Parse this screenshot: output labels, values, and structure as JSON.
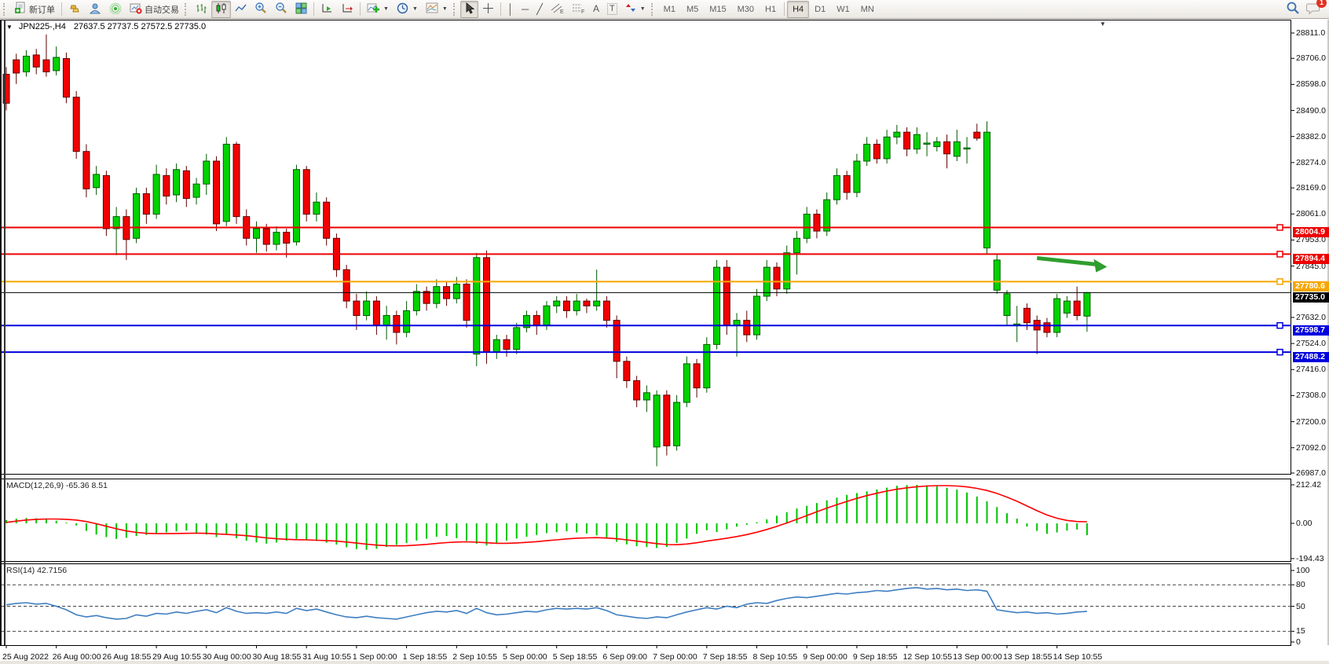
{
  "toolbar": {
    "new_order_label": "新订单",
    "autotrading_label": "自动交易",
    "letters": {
      "text_tool": "A",
      "label_tool": "T",
      "channel": "E",
      "fibo": "F"
    },
    "line_glyphs": {
      "vline": "│",
      "hline": "─",
      "trendline": "╱",
      "crosshair": "+"
    },
    "timeframes": [
      "M1",
      "M5",
      "M15",
      "M30",
      "H1",
      "H4",
      "D1",
      "W1",
      "MN"
    ],
    "active_timeframe": "H4",
    "chat_badge": "1"
  },
  "chart": {
    "symbol_period": "JPN225-,H4",
    "ohlc_text": "27637.5 27737.5 27572.5 27735.0",
    "title_arrow": "▼",
    "shift_marker": "▼"
  },
  "chart_data": {
    "type": "candlestick",
    "symbol": "JPN225-",
    "period": "H4",
    "last": {
      "open": 27637.5,
      "high": 27737.5,
      "low": 27572.5,
      "close": 27735.0
    },
    "price_axis": {
      "range": [
        26987.0,
        28811.0
      ],
      "ticks": [
        "28811.0",
        "28706.0",
        "28598.0",
        "28490.0",
        "28382.0",
        "28274.0",
        "28169.0",
        "28061.0",
        "27953.0",
        "27845.0",
        "27632.0",
        "27524.0",
        "27416.0",
        "27308.0",
        "27200.0",
        "27092.0",
        "26987.0"
      ]
    },
    "colors": {
      "bull_fill": "#00d300",
      "bull_stroke": "#005a00",
      "bear_fill": "#f20000",
      "bear_stroke": "#5e0000",
      "macd_hist": "#00c400",
      "macd_signal": "#ff0000",
      "rsi_line": "#3e7ec2",
      "arrow": "#2f9e2f"
    },
    "hlines": [
      {
        "price": 28004.9,
        "label": "28004.9",
        "color": "#ee0000",
        "width": 2,
        "marker": true
      },
      {
        "price": 27894.4,
        "label": "27894.4",
        "color": "#ee0000",
        "width": 2,
        "marker": true
      },
      {
        "price": 27780.6,
        "label": "27780.6",
        "color": "#f7a600",
        "width": 2,
        "marker": true
      },
      {
        "price": 27735.0,
        "label": "27735.0",
        "color": "#000000",
        "width": 1,
        "marker": false
      },
      {
        "price": 27598.7,
        "label": "27598.7",
        "color": "#0000dd",
        "width": 2,
        "marker": true
      },
      {
        "price": 27488.2,
        "label": "27488.2",
        "color": "#0000dd",
        "width": 2,
        "marker": true
      }
    ],
    "arrow_annotation": {
      "x1_index": 103,
      "price1": 27878,
      "x2_index": 110,
      "price2": 27845
    },
    "candles": [
      [
        28640,
        28670,
        28490,
        28520
      ],
      [
        28700,
        28725,
        28600,
        28645
      ],
      [
        28650,
        28740,
        28630,
        28715
      ],
      [
        28720,
        28745,
        28640,
        28670
      ],
      [
        28700,
        28805,
        28630,
        28650
      ],
      [
        28655,
        28755,
        28635,
        28710
      ],
      [
        28705,
        28730,
        28520,
        28545
      ],
      [
        28545,
        28570,
        28290,
        28320
      ],
      [
        28320,
        28350,
        28130,
        28165
      ],
      [
        28170,
        28260,
        28140,
        28225
      ],
      [
        28220,
        28240,
        27970,
        28000
      ],
      [
        28000,
        28090,
        27890,
        28050
      ],
      [
        28050,
        28080,
        27870,
        27955
      ],
      [
        27960,
        28170,
        27940,
        28145
      ],
      [
        28145,
        28170,
        28020,
        28060
      ],
      [
        28060,
        28265,
        28040,
        28225
      ],
      [
        28220,
        28250,
        28100,
        28135
      ],
      [
        28140,
        28270,
        28110,
        28245
      ],
      [
        28240,
        28260,
        28090,
        28125
      ],
      [
        28130,
        28210,
        28100,
        28185
      ],
      [
        28185,
        28310,
        28140,
        28280
      ],
      [
        28280,
        28300,
        27990,
        28020
      ],
      [
        28030,
        28380,
        28010,
        28350
      ],
      [
        28350,
        28360,
        28020,
        28050
      ],
      [
        28050,
        28080,
        27930,
        27960
      ],
      [
        27960,
        28030,
        27900,
        28000
      ],
      [
        28000,
        28020,
        27905,
        27935
      ],
      [
        27935,
        28010,
        27910,
        27985
      ],
      [
        27985,
        28000,
        27880,
        27940
      ],
      [
        27945,
        28265,
        27930,
        28245
      ],
      [
        28245,
        28260,
        28030,
        28060
      ],
      [
        28060,
        28150,
        28030,
        28110
      ],
      [
        28110,
        28130,
        27930,
        27960
      ],
      [
        27960,
        27980,
        27800,
        27830
      ],
      [
        27830,
        27850,
        27670,
        27700
      ],
      [
        27700,
        27730,
        27580,
        27640
      ],
      [
        27640,
        27740,
        27620,
        27700
      ],
      [
        27700,
        27720,
        27560,
        27600
      ],
      [
        27600,
        27680,
        27540,
        27640
      ],
      [
        27640,
        27660,
        27520,
        27570
      ],
      [
        27570,
        27700,
        27550,
        27660
      ],
      [
        27660,
        27770,
        27640,
        27740
      ],
      [
        27740,
        27760,
        27660,
        27690
      ],
      [
        27690,
        27790,
        27670,
        27760
      ],
      [
        27760,
        27780,
        27680,
        27710
      ],
      [
        27710,
        27800,
        27690,
        27770
      ],
      [
        27770,
        27790,
        27590,
        27620
      ],
      [
        27480,
        27900,
        27430,
        27880
      ],
      [
        27880,
        27910,
        27440,
        27490
      ],
      [
        27490,
        27560,
        27460,
        27540
      ],
      [
        27540,
        27560,
        27470,
        27500
      ],
      [
        27500,
        27610,
        27480,
        27590
      ],
      [
        27590,
        27660,
        27570,
        27640
      ],
      [
        27640,
        27660,
        27560,
        27600
      ],
      [
        27600,
        27700,
        27580,
        27680
      ],
      [
        27680,
        27720,
        27650,
        27700
      ],
      [
        27700,
        27720,
        27630,
        27660
      ],
      [
        27660,
        27730,
        27640,
        27700
      ],
      [
        27700,
        27710,
        27650,
        27680
      ],
      [
        27680,
        27830,
        27660,
        27700
      ],
      [
        27700,
        27720,
        27590,
        27620
      ],
      [
        27620,
        27640,
        27380,
        27450
      ],
      [
        27450,
        27470,
        27340,
        27370
      ],
      [
        27370,
        27390,
        27260,
        27290
      ],
      [
        27290,
        27350,
        27240,
        27320
      ],
      [
        27095,
        27330,
        27015,
        27310
      ],
      [
        27310,
        27330,
        27060,
        27100
      ],
      [
        27100,
        27310,
        27080,
        27280
      ],
      [
        27280,
        27470,
        27260,
        27440
      ],
      [
        27440,
        27460,
        27300,
        27340
      ],
      [
        27340,
        27550,
        27320,
        27520
      ],
      [
        27520,
        27870,
        27500,
        27840
      ],
      [
        27840,
        27870,
        27560,
        27600
      ],
      [
        27600,
        27650,
        27470,
        27620
      ],
      [
        27620,
        27660,
        27530,
        27560
      ],
      [
        27560,
        27750,
        27540,
        27720
      ],
      [
        27720,
        27870,
        27700,
        27840
      ],
      [
        27840,
        27860,
        27720,
        27750
      ],
      [
        27750,
        27930,
        27730,
        27900
      ],
      [
        27900,
        27990,
        27810,
        27960
      ],
      [
        27960,
        28090,
        27940,
        28060
      ],
      [
        28060,
        28080,
        27960,
        27990
      ],
      [
        27990,
        28150,
        27970,
        28120
      ],
      [
        28120,
        28250,
        28100,
        28220
      ],
      [
        28220,
        28240,
        28120,
        28150
      ],
      [
        28150,
        28310,
        28130,
        28280
      ],
      [
        28280,
        28380,
        28260,
        28350
      ],
      [
        28350,
        28370,
        28270,
        28290
      ],
      [
        28290,
        28410,
        28270,
        28380
      ],
      [
        28380,
        28430,
        28350,
        28400
      ],
      [
        28400,
        28420,
        28300,
        28330
      ],
      [
        28330,
        28420,
        28310,
        28390
      ],
      [
        28350,
        28400,
        28300,
        28355
      ],
      [
        28340,
        28380,
        28320,
        28360
      ],
      [
        28360,
        28390,
        28250,
        28310
      ],
      [
        28300,
        28410,
        28280,
        28360
      ],
      [
        28330,
        28380,
        28270,
        28335
      ],
      [
        28400,
        28435,
        28365,
        28375
      ],
      [
        27920,
        28445,
        27895,
        28400
      ],
      [
        27745,
        27895,
        27730,
        27870
      ],
      [
        27640,
        27745,
        27600,
        27730
      ],
      [
        27600,
        27680,
        27530,
        27605
      ],
      [
        27670,
        27690,
        27580,
        27610
      ],
      [
        27620,
        27640,
        27480,
        27580
      ],
      [
        27610,
        27630,
        27550,
        27570
      ],
      [
        27570,
        27730,
        27550,
        27710
      ],
      [
        27650,
        27720,
        27630,
        27700
      ],
      [
        27700,
        27760,
        27620,
        27640
      ],
      [
        27637.5,
        27737.5,
        27572.5,
        27735.0
      ]
    ],
    "x_labels": [
      "25 Aug 2022",
      "26 Aug 00:00",
      "26 Aug 18:55",
      "29 Aug 10:55",
      "30 Aug 00:00",
      "30 Aug 18:55",
      "31 Aug 10:55",
      "1 Sep 00:00",
      "1 Sep 18:55",
      "2 Sep 10:55",
      "5 Sep 00:00",
      "5 Sep 18:55",
      "6 Sep 09:00",
      "7 Sep 00:00",
      "7 Sep 18:55",
      "8 Sep 10:55",
      "9 Sep 00:00",
      "9 Sep 18:55",
      "12 Sep 10:55",
      "13 Sep 00:00",
      "13 Sep 18:55",
      "14 Sep 10:55"
    ],
    "bars_per_x_label": 5,
    "macd": {
      "label": "MACD(12,26,9)",
      "values_text": "-65.36 8.51",
      "axis_ticks": [
        "212.42",
        "0.00",
        "-194.43"
      ],
      "range": [
        -194.43,
        212.42
      ],
      "histogram": [
        18,
        26,
        30,
        28,
        22,
        14,
        4,
        -12,
        -42,
        -62,
        -76,
        -86,
        -80,
        -70,
        -64,
        -55,
        -50,
        -45,
        -40,
        -52,
        -62,
        -76,
        -60,
        -82,
        -96,
        -106,
        -112,
        -106,
        -96,
        -86,
        -92,
        -97,
        -107,
        -117,
        -132,
        -142,
        -146,
        -140,
        -130,
        -118,
        -108,
        -95,
        -85,
        -74,
        -70,
        -82,
        -96,
        -112,
        -122,
        -110,
        -95,
        -84,
        -74,
        -64,
        -54,
        -49,
        -44,
        -50,
        -56,
        -66,
        -82,
        -102,
        -116,
        -126,
        -131,
        -136,
        -130,
        -108,
        -84,
        -58,
        -38,
        -48,
        -33,
        -18,
        -8,
        6,
        22,
        42,
        62,
        82,
        97,
        112,
        127,
        142,
        157,
        167,
        177,
        187,
        197,
        207,
        211,
        212.42,
        210,
        205,
        196,
        186,
        170,
        148,
        122,
        90,
        56,
        26,
        -18,
        -42,
        -58,
        -50,
        -40,
        -34,
        -65.36
      ],
      "signal": [
        5,
        12,
        18,
        22,
        24,
        24,
        22,
        18,
        10,
        -2,
        -16,
        -30,
        -42,
        -50,
        -55,
        -57,
        -57,
        -56,
        -55,
        -54,
        -55,
        -58,
        -61,
        -64,
        -68,
        -74,
        -80,
        -85,
        -88,
        -90,
        -91,
        -93,
        -95,
        -98,
        -103,
        -109,
        -115,
        -120,
        -123,
        -124,
        -123,
        -120,
        -116,
        -111,
        -106,
        -103,
        -102,
        -104,
        -107,
        -110,
        -110,
        -108,
        -105,
        -101,
        -96,
        -91,
        -86,
        -82,
        -80,
        -79,
        -81,
        -85,
        -91,
        -98,
        -105,
        -112,
        -117,
        -118,
        -114,
        -107,
        -98,
        -90,
        -82,
        -73,
        -62,
        -49,
        -34,
        -17,
        2,
        22,
        43,
        64,
        84,
        103,
        121,
        138,
        153,
        166,
        178,
        188,
        196,
        202,
        206,
        208,
        208,
        206,
        201,
        193,
        181,
        165,
        145,
        122,
        96,
        70,
        46,
        28,
        16,
        10,
        8.51
      ]
    },
    "rsi": {
      "label": "RSI(14)",
      "value_text": "42.7156",
      "axis_ticks": [
        "100",
        "80",
        "50",
        "15",
        "0"
      ],
      "dashed_levels": [
        80,
        50,
        15
      ],
      "range": [
        0,
        100
      ],
      "values": [
        52,
        54,
        55,
        53,
        54,
        50,
        45,
        38,
        35,
        37,
        34,
        32,
        33,
        38,
        36,
        40,
        39,
        42,
        40,
        43,
        45,
        41,
        48,
        43,
        40,
        41,
        40,
        42,
        40,
        47,
        44,
        46,
        42,
        38,
        35,
        34,
        36,
        34,
        33,
        32,
        35,
        38,
        41,
        43,
        42,
        44,
        40,
        47,
        41,
        38,
        39,
        41,
        43,
        42,
        45,
        47,
        46,
        47,
        46,
        48,
        44,
        38,
        36,
        34,
        33,
        35,
        34,
        38,
        42,
        45,
        48,
        46,
        50,
        48,
        53,
        55,
        54,
        58,
        61,
        63,
        62,
        64,
        66,
        68,
        67,
        69,
        70,
        72,
        71,
        73,
        75,
        76,
        74,
        75,
        73,
        74,
        72,
        73,
        71,
        45,
        43,
        41,
        42,
        40,
        41,
        39,
        40,
        42,
        42.7156
      ]
    }
  }
}
